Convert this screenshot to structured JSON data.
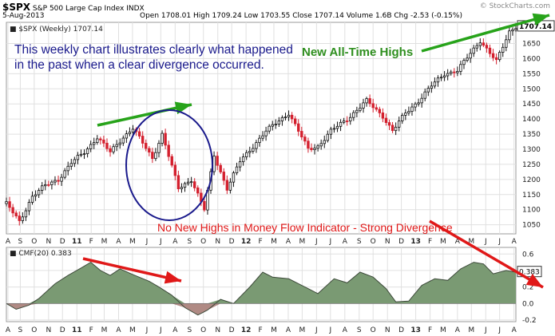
{
  "header": {
    "symbol": "$SPX",
    "name": "S&P 500 Large Cap Index",
    "exchange": "INDX",
    "date": "5-Aug-2013",
    "stats": "Open 1708.01  High 1709.24  Low 1703.55  Close 1707.14  Volume 1.6B  Chg -2.53 (-0.15%)",
    "source": "© StockCharts.com"
  },
  "annotations": {
    "intro": "This weekly chart illustrates clearly what happened in the past when a clear divergence occurred.",
    "new_highs": "New All-Time Highs",
    "divergence": "No New Highs in Money Flow Indicator - Strong Divergence"
  },
  "colors": {
    "up": "#111111",
    "down": "#d4202e",
    "cmf_positive": "#7a9a73",
    "cmf_negative": "#b08a84",
    "arrow_green": "#27a31a",
    "arrow_red": "#e01818",
    "circle": "#1a1a8c",
    "grid": "#e0e0e0"
  },
  "chart_data": [
    {
      "type": "candlestick",
      "legend": "$SPX (Weekly) 1707.14",
      "last_value": "1707.14",
      "ylim": [
        1020,
        1720
      ],
      "yticks": [
        1050,
        1100,
        1150,
        1200,
        1250,
        1300,
        1350,
        1400,
        1450,
        1500,
        1550,
        1600,
        1650
      ],
      "x_start": "2010-08-02",
      "x_end": "2013-08-05",
      "x_tick_labels": [
        "A",
        "S",
        "O",
        "N",
        "D",
        "11",
        "F",
        "M",
        "A",
        "M",
        "J",
        "J",
        "A",
        "S",
        "O",
        "N",
        "D",
        "12",
        "F",
        "M",
        "A",
        "M",
        "J",
        "J",
        "A",
        "S",
        "O",
        "N",
        "D",
        "13",
        "F",
        "M",
        "A",
        "M",
        "J",
        "J",
        "A"
      ],
      "series": [
        {
          "date": "2010-08-02",
          "close": 1120
        },
        {
          "date": "2010-08-30",
          "close": 1060
        },
        {
          "date": "2010-09-27",
          "close": 1145
        },
        {
          "date": "2010-10-25",
          "close": 1180
        },
        {
          "date": "2010-11-22",
          "close": 1200
        },
        {
          "date": "2010-12-20",
          "close": 1255
        },
        {
          "date": "2011-01-17",
          "close": 1290
        },
        {
          "date": "2011-02-14",
          "close": 1340
        },
        {
          "date": "2011-03-14",
          "close": 1290
        },
        {
          "date": "2011-04-11",
          "close": 1340
        },
        {
          "date": "2011-05-02",
          "close": 1370
        },
        {
          "date": "2011-06-13",
          "close": 1270
        },
        {
          "date": "2011-07-04",
          "close": 1350
        },
        {
          "date": "2011-08-08",
          "close": 1170
        },
        {
          "date": "2011-09-05",
          "close": 1200
        },
        {
          "date": "2011-10-03",
          "close": 1100
        },
        {
          "date": "2011-10-24",
          "close": 1280
        },
        {
          "date": "2011-11-21",
          "close": 1170
        },
        {
          "date": "2011-12-19",
          "close": 1260
        },
        {
          "date": "2012-01-16",
          "close": 1310
        },
        {
          "date": "2012-02-13",
          "close": 1360
        },
        {
          "date": "2012-04-02",
          "close": 1420
        },
        {
          "date": "2012-05-14",
          "close": 1300
        },
        {
          "date": "2012-06-04",
          "close": 1310
        },
        {
          "date": "2012-07-02",
          "close": 1360
        },
        {
          "date": "2012-08-06",
          "close": 1400
        },
        {
          "date": "2012-09-17",
          "close": 1460
        },
        {
          "date": "2012-10-22",
          "close": 1410
        },
        {
          "date": "2012-11-12",
          "close": 1360
        },
        {
          "date": "2012-12-10",
          "close": 1420
        },
        {
          "date": "2013-01-07",
          "close": 1460
        },
        {
          "date": "2013-02-04",
          "close": 1510
        },
        {
          "date": "2013-03-04",
          "close": 1550
        },
        {
          "date": "2013-04-01",
          "close": 1560
        },
        {
          "date": "2013-05-20",
          "close": 1660
        },
        {
          "date": "2013-06-24",
          "close": 1590
        },
        {
          "date": "2013-07-22",
          "close": 1690
        },
        {
          "date": "2013-08-05",
          "close": 1707
        }
      ]
    },
    {
      "type": "area",
      "legend": "CMF(20) 0.383",
      "last_value": "0.383",
      "ylim": [
        -0.22,
        0.68
      ],
      "yticks": [
        -0.2,
        0.0,
        0.2,
        0.4,
        0.6
      ],
      "x_tick_labels": [
        "A",
        "S",
        "O",
        "N",
        "D",
        "11",
        "F",
        "M",
        "A",
        "M",
        "J",
        "J",
        "A",
        "S",
        "O",
        "N",
        "D",
        "12",
        "F",
        "M",
        "A",
        "M",
        "J",
        "J",
        "A",
        "S",
        "O",
        "N",
        "D",
        "13",
        "F",
        "M",
        "A",
        "M",
        "J",
        "J",
        "A"
      ],
      "series": [
        {
          "date": "2010-08-02",
          "value": 0.0
        },
        {
          "date": "2010-08-23",
          "value": -0.07
        },
        {
          "date": "2010-09-20",
          "value": -0.02
        },
        {
          "date": "2010-10-11",
          "value": 0.06
        },
        {
          "date": "2010-11-15",
          "value": 0.24
        },
        {
          "date": "2010-12-13",
          "value": 0.34
        },
        {
          "date": "2011-01-10",
          "value": 0.43
        },
        {
          "date": "2011-01-31",
          "value": 0.5
        },
        {
          "date": "2011-02-21",
          "value": 0.4
        },
        {
          "date": "2011-03-14",
          "value": 0.34
        },
        {
          "date": "2011-04-04",
          "value": 0.42
        },
        {
          "date": "2011-05-02",
          "value": 0.35
        },
        {
          "date": "2011-06-06",
          "value": 0.27
        },
        {
          "date": "2011-06-27",
          "value": 0.2
        },
        {
          "date": "2011-07-25",
          "value": 0.1
        },
        {
          "date": "2011-08-22",
          "value": -0.05
        },
        {
          "date": "2011-09-19",
          "value": -0.14
        },
        {
          "date": "2011-10-10",
          "value": -0.08
        },
        {
          "date": "2011-11-07",
          "value": 0.05
        },
        {
          "date": "2011-12-05",
          "value": 0.0
        },
        {
          "date": "2012-01-09",
          "value": 0.2
        },
        {
          "date": "2012-02-06",
          "value": 0.38
        },
        {
          "date": "2012-02-27",
          "value": 0.32
        },
        {
          "date": "2012-04-02",
          "value": 0.3
        },
        {
          "date": "2012-05-07",
          "value": 0.2
        },
        {
          "date": "2012-06-04",
          "value": 0.12
        },
        {
          "date": "2012-07-09",
          "value": 0.3
        },
        {
          "date": "2012-08-06",
          "value": 0.25
        },
        {
          "date": "2012-09-03",
          "value": 0.38
        },
        {
          "date": "2012-10-01",
          "value": 0.32
        },
        {
          "date": "2012-10-29",
          "value": 0.18
        },
        {
          "date": "2012-11-19",
          "value": 0.02
        },
        {
          "date": "2012-12-17",
          "value": 0.03
        },
        {
          "date": "2013-01-14",
          "value": 0.22
        },
        {
          "date": "2013-02-11",
          "value": 0.3
        },
        {
          "date": "2013-03-11",
          "value": 0.28
        },
        {
          "date": "2013-04-08",
          "value": 0.42
        },
        {
          "date": "2013-05-06",
          "value": 0.5
        },
        {
          "date": "2013-05-27",
          "value": 0.48
        },
        {
          "date": "2013-06-17",
          "value": 0.36
        },
        {
          "date": "2013-07-15",
          "value": 0.4
        },
        {
          "date": "2013-08-05",
          "value": 0.38
        }
      ]
    }
  ]
}
